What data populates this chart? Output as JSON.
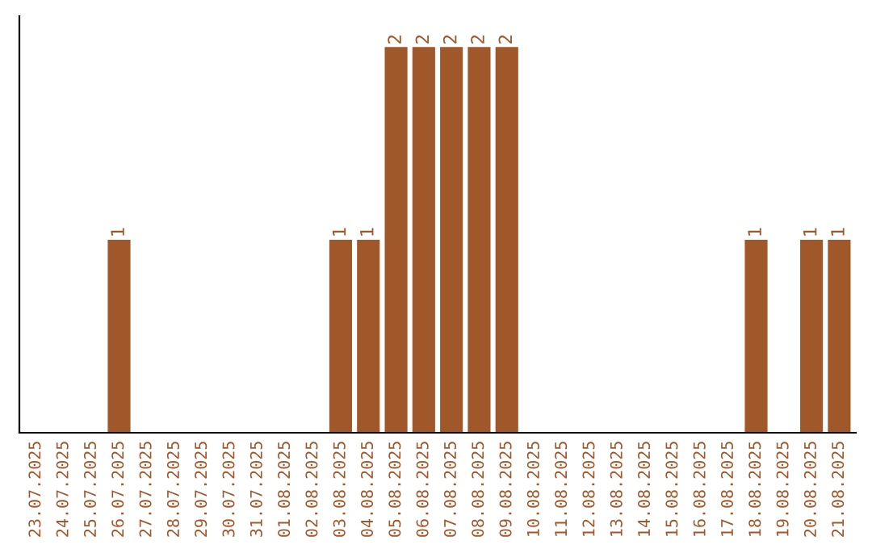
{
  "chart_data": {
    "type": "bar",
    "categories": [
      "23.07.2025",
      "24.07.2025",
      "25.07.2025",
      "26.07.2025",
      "27.07.2025",
      "28.07.2025",
      "29.07.2025",
      "30.07.2025",
      "31.07.2025",
      "01.08.2025",
      "02.08.2025",
      "03.08.2025",
      "04.08.2025",
      "05.08.2025",
      "06.08.2025",
      "07.08.2025",
      "08.08.2025",
      "09.08.2025",
      "10.08.2025",
      "11.08.2025",
      "12.08.2025",
      "13.08.2025",
      "14.08.2025",
      "15.08.2025",
      "16.08.2025",
      "17.08.2025",
      "18.08.2025",
      "19.08.2025",
      "20.08.2025",
      "21.08.2025"
    ],
    "values": [
      0,
      0,
      0,
      1,
      0,
      0,
      0,
      0,
      0,
      0,
      0,
      1,
      1,
      2,
      2,
      2,
      2,
      2,
      0,
      0,
      0,
      0,
      0,
      0,
      0,
      0,
      1,
      0,
      1,
      1
    ],
    "value_labels": [
      null,
      null,
      null,
      "1",
      null,
      null,
      null,
      null,
      null,
      null,
      null,
      "1",
      "1",
      "2",
      "2",
      "2",
      "2",
      "2",
      null,
      null,
      null,
      null,
      null,
      null,
      null,
      null,
      "1",
      null,
      "1",
      "1"
    ],
    "color": "#a0572a",
    "grid": false,
    "tick_labels": "x"
  }
}
